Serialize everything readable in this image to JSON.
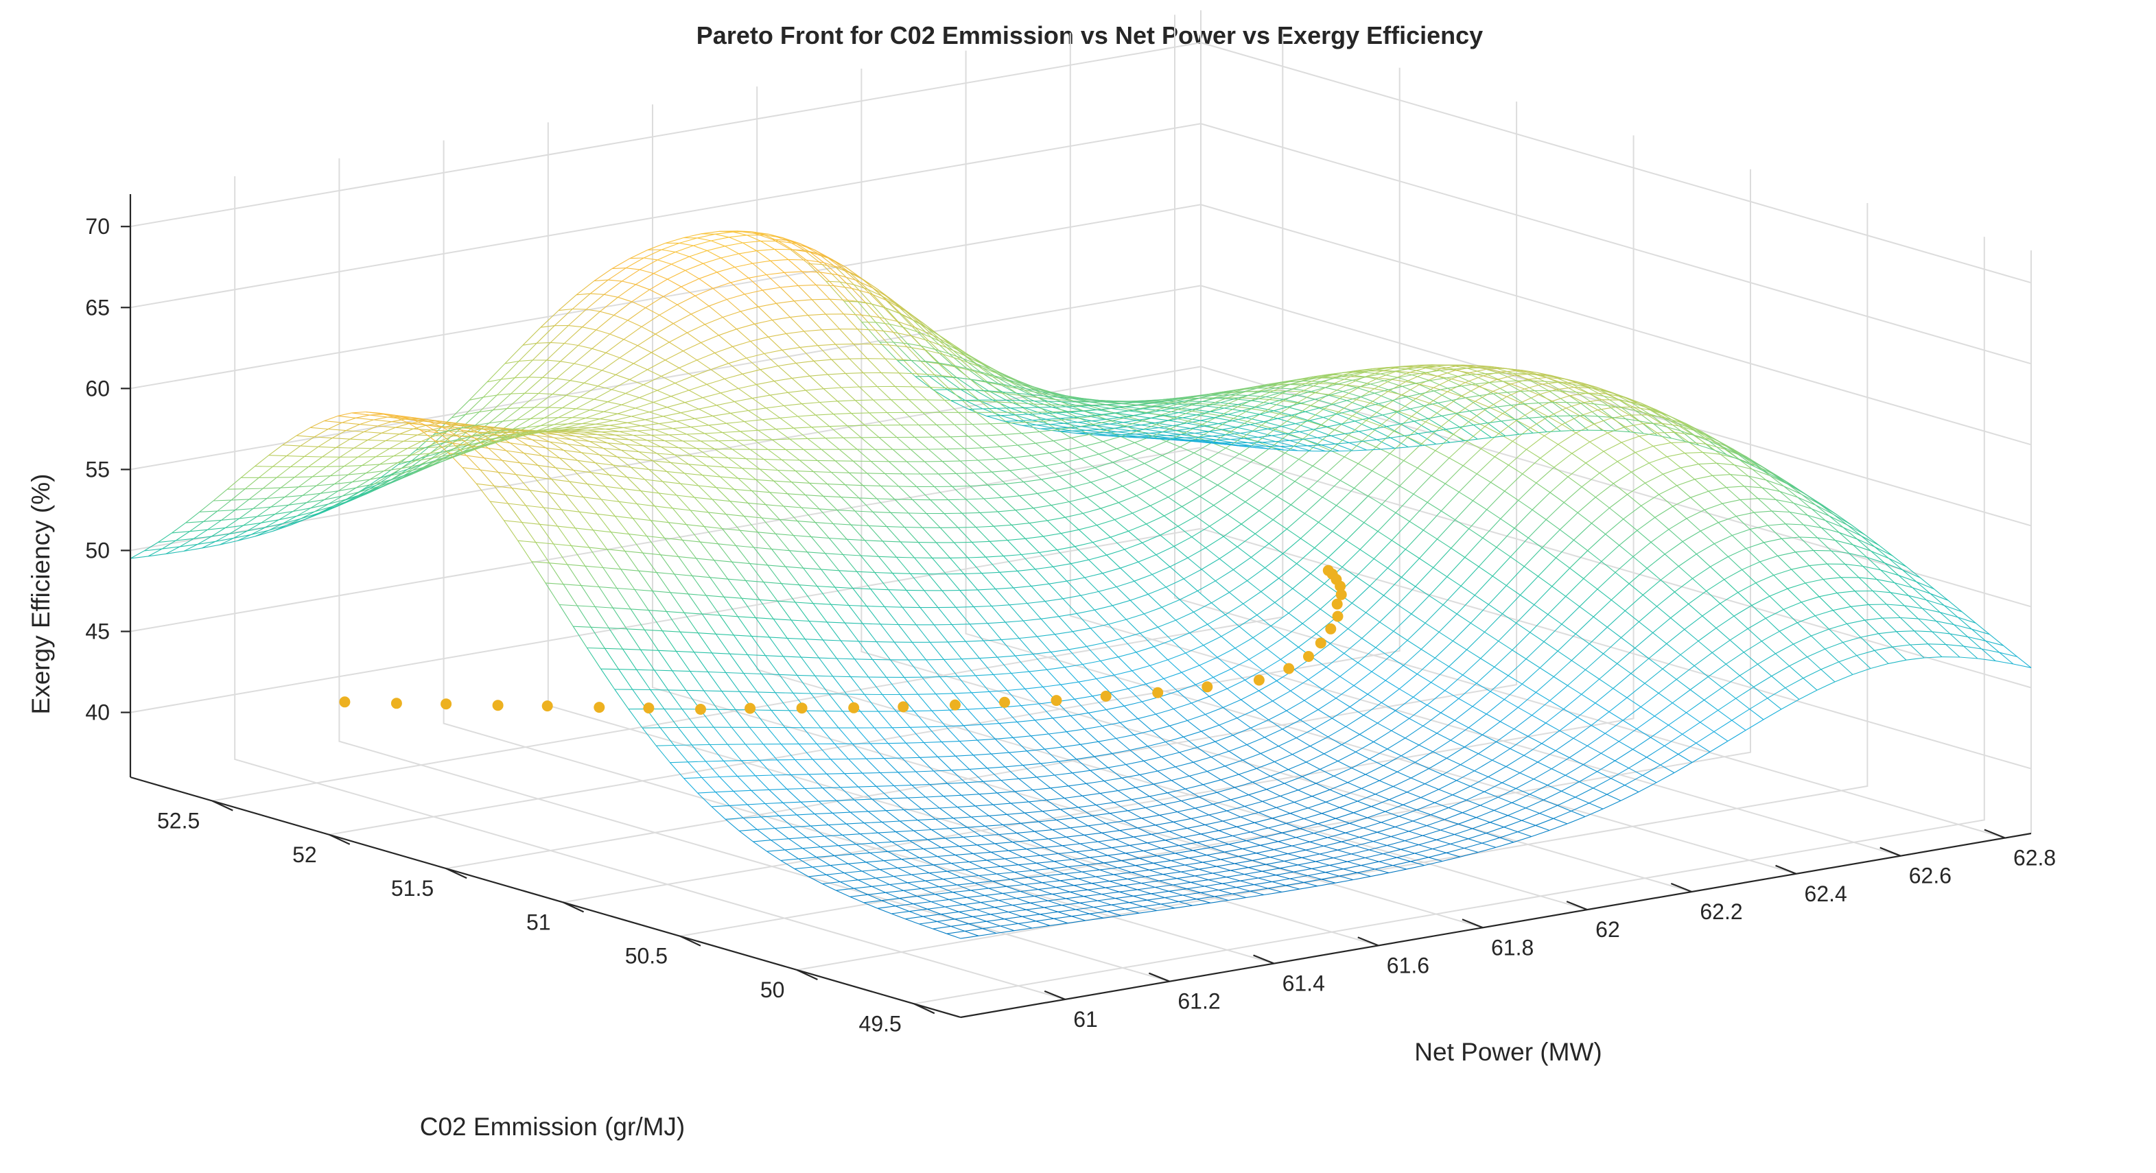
{
  "chart_data": {
    "type": "surface",
    "title": "Pareto Front for C02 Emmission vs Net Power vs Exergy Efficiency",
    "xlabel": "Net Power (MW)",
    "ylabel": "C02 Emmission (gr/MJ)",
    "zlabel": "Exergy Efficiency (%)",
    "xlim": [
      60.8,
      62.85
    ],
    "ylim": [
      49.3,
      52.85
    ],
    "zlim": [
      36,
      72
    ],
    "x_ticks": [
      61,
      61.2,
      61.4,
      61.6,
      61.8,
      62,
      62.2,
      62.4,
      62.6,
      62.8
    ],
    "x_tick_labels": [
      "61",
      "61.2",
      "61.4",
      "61.6",
      "61.8",
      "62",
      "62.2",
      "62.4",
      "62.6",
      "62.8"
    ],
    "y_ticks": [
      49.5,
      50,
      50.5,
      51,
      51.5,
      52,
      52.5
    ],
    "y_tick_labels": [
      "49.5",
      "50",
      "50.5",
      "51",
      "51.5",
      "52",
      "52.5"
    ],
    "z_ticks": [
      40,
      45,
      50,
      55,
      60,
      65,
      70
    ],
    "z_tick_labels": [
      "40",
      "45",
      "50",
      "55",
      "60",
      "65",
      "70"
    ],
    "grid": true,
    "colormap": [
      "#0072BD",
      "#1AAFE0",
      "#2CC5A0",
      "#A5D36A",
      "#F8BA3D",
      "#F9E62E"
    ],
    "surface_color_range": [
      40,
      68
    ],
    "pareto_color": "#EDB120",
    "surface_samples": {
      "description": "Exergy Efficiency (%) sampled at selected grid points",
      "points": [
        {
          "net_power": 60.8,
          "co2": 52.85,
          "exergy": 36
        },
        {
          "net_power": 60.8,
          "co2": 51.9,
          "exergy": 62
        },
        {
          "net_power": 60.8,
          "co2": 49.3,
          "exergy": 61
        },
        {
          "net_power": 61.4,
          "co2": 51.5,
          "exergy": 42
        },
        {
          "net_power": 61.8,
          "co2": 52.85,
          "exergy": 56
        },
        {
          "net_power": 62.6,
          "co2": 51.5,
          "exergy": 70
        },
        {
          "net_power": 62.85,
          "co2": 49.3,
          "exergy": 65
        }
      ]
    },
    "pareto_front": {
      "name": "Pareto front",
      "points": [
        {
          "net_power": 61.0,
          "co2": 52.38,
          "exergy": 41.5
        },
        {
          "net_power": 61.05,
          "co2": 52.27,
          "exergy": 41.6
        },
        {
          "net_power": 61.1,
          "co2": 52.17,
          "exergy": 41.7
        },
        {
          "net_power": 61.15,
          "co2": 52.06,
          "exergy": 41.8
        },
        {
          "net_power": 61.2,
          "co2": 51.96,
          "exergy": 41.9
        },
        {
          "net_power": 61.25,
          "co2": 51.85,
          "exergy": 42.0
        },
        {
          "net_power": 61.3,
          "co2": 51.75,
          "exergy": 42.1
        },
        {
          "net_power": 61.35,
          "co2": 51.64,
          "exergy": 42.2
        },
        {
          "net_power": 61.4,
          "co2": 51.54,
          "exergy": 42.4
        },
        {
          "net_power": 61.45,
          "co2": 51.43,
          "exergy": 42.6
        },
        {
          "net_power": 61.5,
          "co2": 51.32,
          "exergy": 42.8
        },
        {
          "net_power": 61.55,
          "co2": 51.22,
          "exergy": 43.0
        },
        {
          "net_power": 61.6,
          "co2": 51.11,
          "exergy": 43.3
        },
        {
          "net_power": 61.65,
          "co2": 51.01,
          "exergy": 43.6
        },
        {
          "net_power": 61.7,
          "co2": 50.9,
          "exergy": 43.9
        },
        {
          "net_power": 61.75,
          "co2": 50.8,
          "exergy": 44.3
        },
        {
          "net_power": 61.8,
          "co2": 50.69,
          "exergy": 44.7
        },
        {
          "net_power": 61.85,
          "co2": 50.59,
          "exergy": 45.2
        },
        {
          "net_power": 61.9,
          "co2": 50.48,
          "exergy": 45.8
        },
        {
          "net_power": 61.93,
          "co2": 50.42,
          "exergy": 46.6
        },
        {
          "net_power": 61.95,
          "co2": 50.38,
          "exergy": 47.4
        },
        {
          "net_power": 61.96,
          "co2": 50.35,
          "exergy": 48.3
        },
        {
          "net_power": 61.97,
          "co2": 50.33,
          "exergy": 49.2
        },
        {
          "net_power": 61.97,
          "co2": 50.3,
          "exergy": 50.1
        },
        {
          "net_power": 61.96,
          "co2": 50.28,
          "exergy": 51.0
        },
        {
          "net_power": 61.95,
          "co2": 50.24,
          "exergy": 51.8
        },
        {
          "net_power": 61.93,
          "co2": 50.2,
          "exergy": 52.6
        },
        {
          "net_power": 61.9,
          "co2": 50.15,
          "exergy": 53.4
        },
        {
          "net_power": 61.87,
          "co2": 50.1,
          "exergy": 54.1
        },
        {
          "net_power": 61.84,
          "co2": 50.05,
          "exergy": 54.7
        }
      ]
    }
  }
}
